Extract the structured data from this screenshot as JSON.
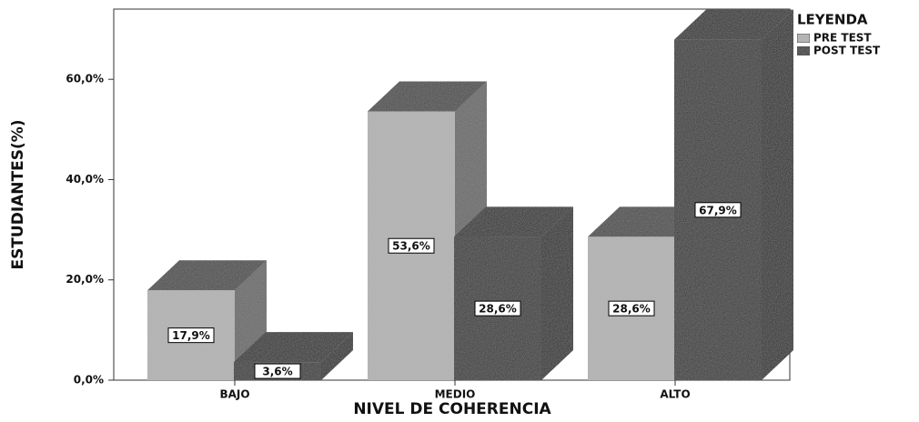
{
  "chart_data": {
    "type": "bar3d",
    "categories": [
      "BAJO",
      "MEDIO",
      "ALTO"
    ],
    "series": [
      {
        "name": "PRE TEST",
        "color": "#b4b4b4",
        "values": [
          17.9,
          53.6,
          28.6
        ],
        "value_labels": [
          "17,9%",
          "53,6%",
          "28,6%"
        ]
      },
      {
        "name": "POST TEST",
        "color": "#262626",
        "values": [
          3.6,
          28.6,
          67.9
        ],
        "value_labels": [
          "3,6%",
          "28,6%",
          "67,9%"
        ]
      }
    ],
    "xlabel": "NIVEL DE COHERENCIA",
    "ylabel": "ESTUDIANTES(%)",
    "legend_title": "LEYENDA",
    "legend": "right",
    "ylim": [
      0,
      74
    ],
    "yticks": [
      {
        "value": 0,
        "label": "0,0%"
      },
      {
        "value": 20,
        "label": "20,0%"
      },
      {
        "value": 40,
        "label": "40,0%"
      },
      {
        "value": 60,
        "label": "60,0%"
      }
    ]
  }
}
